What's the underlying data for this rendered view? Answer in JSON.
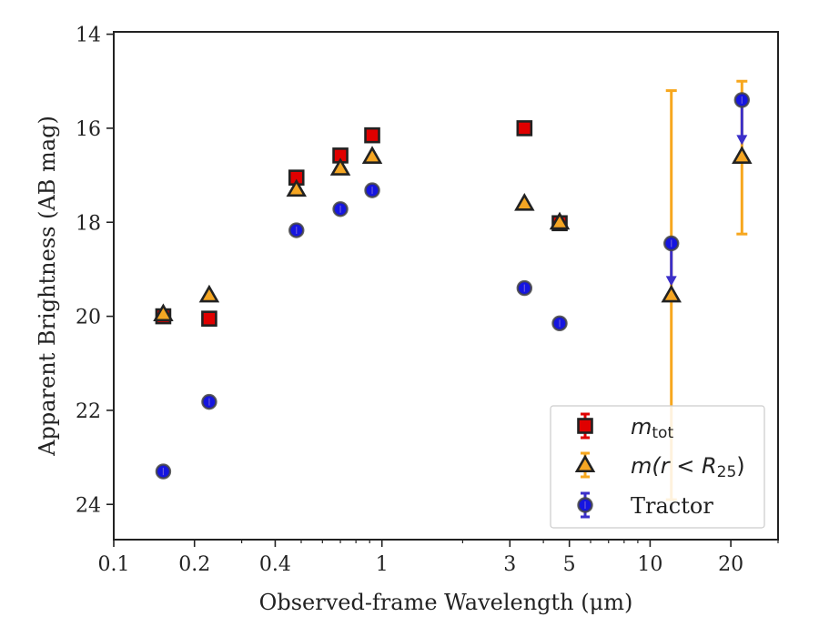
{
  "chart_data": {
    "type": "scatter",
    "title": "",
    "xlabel": "Observed-frame Wavelength (μm)",
    "ylabel": "Apparent Brightness (AB mag)",
    "x_scale": "log",
    "xlim": [
      0.1,
      30
    ],
    "ylim": [
      24.75,
      13.95
    ],
    "y_inverted": true,
    "x_ticks": [
      {
        "value": 0.1,
        "label": "0.1"
      },
      {
        "value": 0.2,
        "label": "0.2"
      },
      {
        "value": 0.4,
        "label": "0.4"
      },
      {
        "value": 1,
        "label": "1"
      },
      {
        "value": 3,
        "label": "3"
      },
      {
        "value": 5,
        "label": "5"
      },
      {
        "value": 10,
        "label": "10"
      },
      {
        "value": 20,
        "label": "20"
      }
    ],
    "y_ticks": [
      {
        "value": 14,
        "label": "14"
      },
      {
        "value": 16,
        "label": "16"
      },
      {
        "value": 18,
        "label": "18"
      },
      {
        "value": 20,
        "label": "20"
      },
      {
        "value": 22,
        "label": "22"
      },
      {
        "value": 24,
        "label": "24"
      }
    ],
    "grid": false,
    "legend_position": "bottom-right",
    "colors": {
      "m_tot": "#e00000",
      "m_r25": "#f5a623",
      "tractor": "#1515e0",
      "tractor_err": "#3b2fc9",
      "r25_err": "#f7a71e",
      "edge": "#222222"
    },
    "series": [
      {
        "name": "m_tot",
        "label_main": "m",
        "label_sub": "tot",
        "marker": "square",
        "points": [
          {
            "x": 0.153,
            "y": 20.0
          },
          {
            "x": 0.227,
            "y": 20.05
          },
          {
            "x": 0.48,
            "y": 17.05
          },
          {
            "x": 0.7,
            "y": 16.58
          },
          {
            "x": 0.92,
            "y": 16.15
          },
          {
            "x": 3.4,
            "y": 16.0
          },
          {
            "x": 4.6,
            "y": 18.02
          }
        ]
      },
      {
        "name": "m(r<R25)",
        "label_main": "m(r < R",
        "label_sub": "25",
        "label_end": ")",
        "marker": "triangle",
        "points": [
          {
            "x": 0.153,
            "y": 19.95
          },
          {
            "x": 0.227,
            "y": 19.55
          },
          {
            "x": 0.48,
            "y": 17.3
          },
          {
            "x": 0.7,
            "y": 16.85
          },
          {
            "x": 0.92,
            "y": 16.6
          },
          {
            "x": 3.4,
            "y": 17.6
          },
          {
            "x": 4.6,
            "y": 18.0
          },
          {
            "x": 12.0,
            "y": 19.55,
            "yerr_low": 15.2,
            "yerr_high": 23.9
          },
          {
            "x": 22.0,
            "y": 16.6,
            "yerr_low": 15.0,
            "yerr_high": 18.25
          }
        ]
      },
      {
        "name": "Tractor",
        "marker": "circle",
        "points": [
          {
            "x": 0.153,
            "y": 23.3
          },
          {
            "x": 0.227,
            "y": 21.82
          },
          {
            "x": 0.48,
            "y": 18.17
          },
          {
            "x": 0.7,
            "y": 17.72
          },
          {
            "x": 0.92,
            "y": 17.32
          },
          {
            "x": 3.4,
            "y": 19.4
          },
          {
            "x": 4.6,
            "y": 20.15
          },
          {
            "x": 12.0,
            "y": 18.45,
            "upper_limit_to": 19.3
          },
          {
            "x": 22.0,
            "y": 15.4,
            "upper_limit_to": 16.3
          }
        ]
      }
    ]
  }
}
